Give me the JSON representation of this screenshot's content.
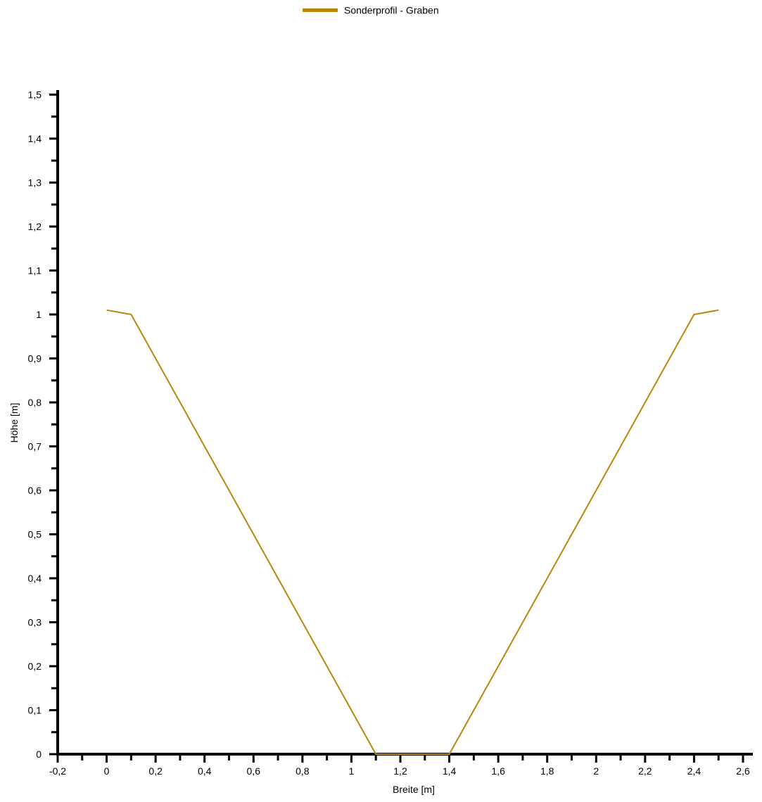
{
  "chart_data": {
    "type": "line",
    "title": "",
    "xlabel": "Breite [m]",
    "ylabel": "Höhe [m]",
    "xlim": [
      -0.2,
      2.6
    ],
    "ylim": [
      0,
      1.5
    ],
    "grid": false,
    "legend_position": "top-center",
    "x_ticks": [
      "-0,2",
      "0",
      "0,2",
      "0,4",
      "0,6",
      "0,8",
      "1",
      "1,2",
      "1,4",
      "1,6",
      "1,8",
      "2",
      "2,2",
      "2,4",
      "2,6"
    ],
    "x_tick_values": [
      -0.2,
      0,
      0.2,
      0.4,
      0.6,
      0.8,
      1,
      1.2,
      1.4,
      1.6,
      1.8,
      2,
      2.2,
      2.4,
      2.6
    ],
    "y_ticks": [
      "0",
      "0,1",
      "0,2",
      "0,3",
      "0,4",
      "0,5",
      "0,6",
      "0,7",
      "0,8",
      "0,9",
      "1",
      "1,1",
      "1,2",
      "1,3",
      "1,4",
      "1,5"
    ],
    "y_tick_values": [
      0,
      0.1,
      0.2,
      0.3,
      0.4,
      0.5,
      0.6,
      0.7,
      0.8,
      0.9,
      1,
      1.1,
      1.2,
      1.3,
      1.4,
      1.5
    ],
    "series": [
      {
        "name": "Sonderprofil - Graben",
        "color": "#B8860B",
        "x": [
          0,
          0.1,
          1.1,
          1.4,
          2.4,
          2.5
        ],
        "y": [
          1.01,
          1.0,
          0,
          0,
          1.0,
          1.01
        ]
      }
    ]
  }
}
